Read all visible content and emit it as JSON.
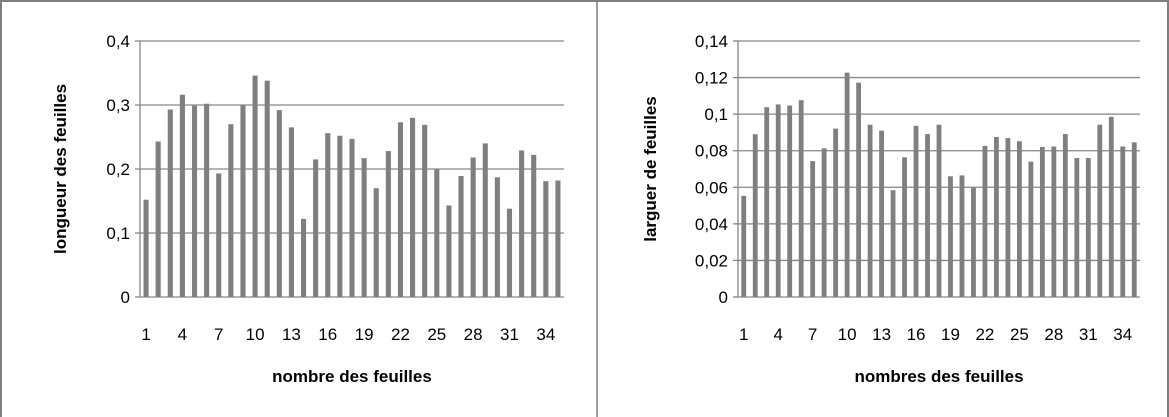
{
  "chart_data": [
    {
      "type": "bar",
      "title": "",
      "xlabel": "nombre des feuilles",
      "ylabel": "longueur des feuilles",
      "ylim": [
        0,
        0.4
      ],
      "y_ticks": [
        "0",
        "0,1",
        "0,2",
        "0,3",
        "0,4"
      ],
      "x_tick_labels": [
        "1",
        "4",
        "7",
        "10",
        "13",
        "16",
        "19",
        "22",
        "25",
        "28",
        "31",
        "34"
      ],
      "grid": true,
      "bar_color": "#7f7f7f",
      "categories": [
        1,
        2,
        3,
        4,
        5,
        6,
        7,
        8,
        9,
        10,
        11,
        12,
        13,
        14,
        15,
        16,
        17,
        18,
        19,
        20,
        21,
        22,
        23,
        24,
        25,
        26,
        27,
        28,
        29,
        30,
        31,
        32,
        33,
        34,
        35
      ],
      "values": [
        0.152,
        0.243,
        0.293,
        0.316,
        0.299,
        0.302,
        0.193,
        0.27,
        0.3,
        0.346,
        0.338,
        0.292,
        0.265,
        0.122,
        0.215,
        0.256,
        0.252,
        0.247,
        0.217,
        0.17,
        0.228,
        0.273,
        0.28,
        0.269,
        0.2,
        0.143,
        0.189,
        0.218,
        0.24,
        0.187,
        0.138,
        0.229,
        0.222,
        0.181,
        0.182
      ]
    },
    {
      "type": "bar",
      "title": "",
      "xlabel": "nombres des feuilles",
      "ylabel": "larguer de feuilles",
      "ylim": [
        0,
        0.14
      ],
      "y_ticks": [
        "0",
        "0,02",
        "0,04",
        "0,06",
        "0,08",
        "0,1",
        "0,12",
        "0,14"
      ],
      "x_tick_labels": [
        "1",
        "4",
        "7",
        "10",
        "13",
        "16",
        "19",
        "22",
        "25",
        "28",
        "31",
        "34"
      ],
      "grid": true,
      "bar_color": "#7f7f7f",
      "categories": [
        1,
        2,
        3,
        4,
        5,
        6,
        7,
        8,
        9,
        10,
        11,
        12,
        13,
        14,
        15,
        16,
        17,
        18,
        19,
        20,
        21,
        22,
        23,
        24,
        25,
        26,
        27,
        28,
        29,
        30,
        31,
        32,
        33,
        34,
        35
      ],
      "values": [
        0.0553,
        0.089,
        0.1038,
        0.1053,
        0.1047,
        0.1076,
        0.0743,
        0.0813,
        0.0921,
        0.1227,
        0.1172,
        0.0942,
        0.091,
        0.0584,
        0.0764,
        0.0936,
        0.0891,
        0.0942,
        0.066,
        0.0665,
        0.0598,
        0.0826,
        0.0875,
        0.0869,
        0.0852,
        0.074,
        0.0821,
        0.0823,
        0.0891,
        0.076,
        0.076,
        0.0942,
        0.0985,
        0.0823,
        0.0846
      ]
    }
  ]
}
